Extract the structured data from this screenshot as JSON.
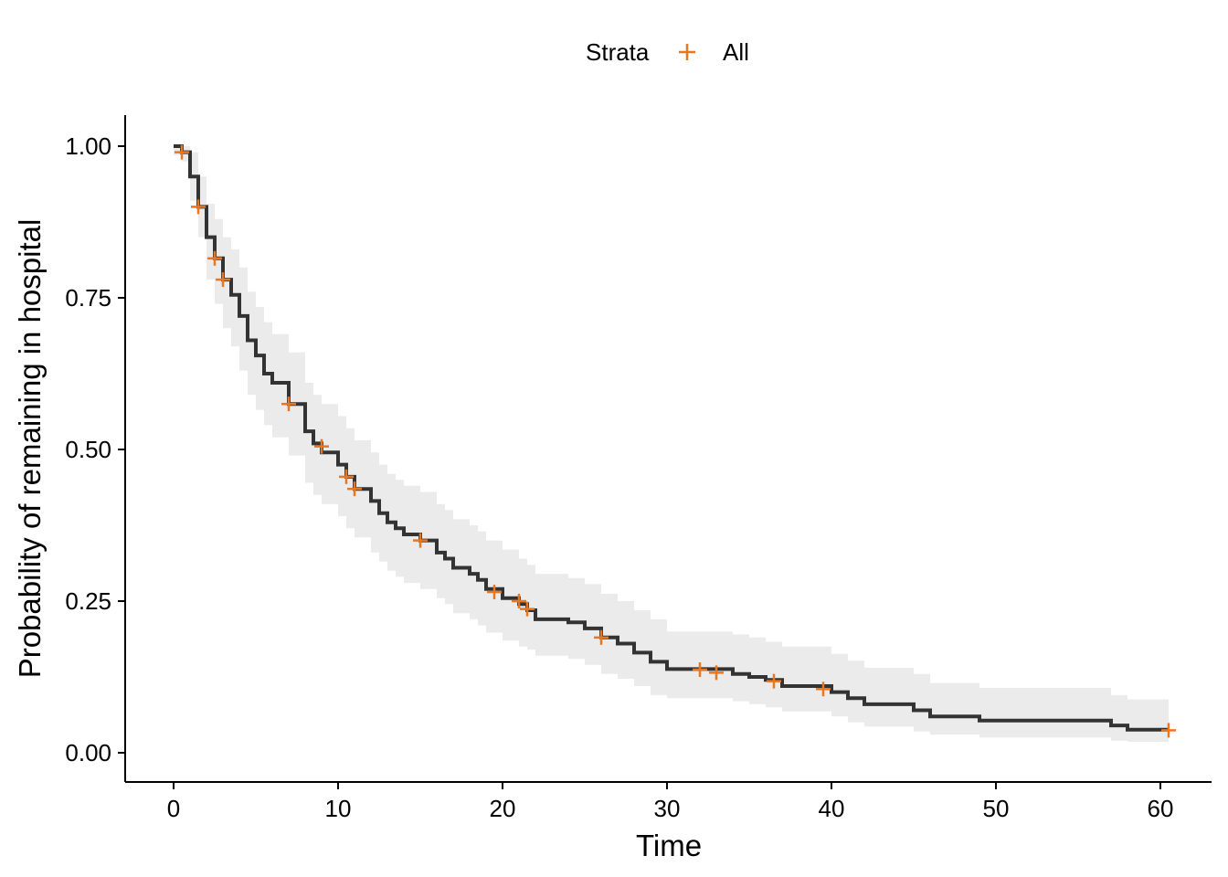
{
  "chart_data": {
    "type": "line",
    "subtype": "kaplan-meier survival curve with confidence band",
    "xlabel": "Time",
    "ylabel": "Probability of remaining in hospital",
    "xlim": [
      -3,
      63
    ],
    "ylim": [
      -0.05,
      1.05
    ],
    "x_ticks": [
      0,
      10,
      20,
      30,
      40,
      50,
      60
    ],
    "y_ticks": [
      0,
      0.25,
      0.5,
      0.75,
      1.0
    ],
    "x_tick_labels": [
      "0",
      "10",
      "20",
      "30",
      "40",
      "50",
      "60"
    ],
    "y_tick_labels": [
      "0.00",
      "0.25",
      "0.50",
      "0.75",
      "1.00"
    ],
    "grid": false,
    "legend": {
      "title": "Strata",
      "placement": "top",
      "entries": [
        {
          "name": "All",
          "color": "#E87722",
          "marker": "plus"
        }
      ]
    },
    "series": [
      {
        "name": "All",
        "line_color": "#333333",
        "band_color": "#EBEBEB",
        "steps": [
          [
            0,
            1.0
          ],
          [
            0.5,
            0.99
          ],
          [
            1,
            0.95
          ],
          [
            1.5,
            0.9
          ],
          [
            2,
            0.85
          ],
          [
            2.5,
            0.815
          ],
          [
            3,
            0.78
          ],
          [
            3.5,
            0.755
          ],
          [
            4,
            0.72
          ],
          [
            4.5,
            0.68
          ],
          [
            5,
            0.655
          ],
          [
            5.5,
            0.625
          ],
          [
            6,
            0.61
          ],
          [
            7,
            0.575
          ],
          [
            8,
            0.53
          ],
          [
            8.5,
            0.51
          ],
          [
            9,
            0.495
          ],
          [
            10,
            0.475
          ],
          [
            10.5,
            0.455
          ],
          [
            11,
            0.435
          ],
          [
            12,
            0.415
          ],
          [
            12.5,
            0.395
          ],
          [
            13,
            0.38
          ],
          [
            13.5,
            0.37
          ],
          [
            14,
            0.36
          ],
          [
            15,
            0.35
          ],
          [
            16,
            0.33
          ],
          [
            16.5,
            0.32
          ],
          [
            17,
            0.305
          ],
          [
            18,
            0.295
          ],
          [
            18.5,
            0.285
          ],
          [
            19,
            0.27
          ],
          [
            20,
            0.255
          ],
          [
            21,
            0.245
          ],
          [
            21.5,
            0.235
          ],
          [
            22,
            0.22
          ],
          [
            24,
            0.215
          ],
          [
            25,
            0.205
          ],
          [
            26,
            0.19
          ],
          [
            27,
            0.18
          ],
          [
            28,
            0.165
          ],
          [
            29,
            0.15
          ],
          [
            30,
            0.138
          ],
          [
            34,
            0.13
          ],
          [
            35,
            0.125
          ],
          [
            36,
            0.12
          ],
          [
            37,
            0.11
          ],
          [
            40,
            0.1
          ],
          [
            41,
            0.09
          ],
          [
            42,
            0.08
          ],
          [
            45,
            0.07
          ],
          [
            46,
            0.06
          ],
          [
            49,
            0.053
          ],
          [
            57,
            0.045
          ],
          [
            58,
            0.038
          ],
          [
            60.5,
            0.038
          ]
        ],
        "lower": [
          [
            0,
            0.985
          ],
          [
            0.5,
            0.975
          ],
          [
            1,
            0.91
          ],
          [
            1.5,
            0.85
          ],
          [
            2,
            0.78
          ],
          [
            2.5,
            0.74
          ],
          [
            3,
            0.7
          ],
          [
            3.5,
            0.67
          ],
          [
            4,
            0.63
          ],
          [
            4.5,
            0.59
          ],
          [
            5,
            0.565
          ],
          [
            5.5,
            0.54
          ],
          [
            6,
            0.52
          ],
          [
            7,
            0.49
          ],
          [
            8,
            0.445
          ],
          [
            8.5,
            0.425
          ],
          [
            9,
            0.41
          ],
          [
            10,
            0.39
          ],
          [
            10.5,
            0.37
          ],
          [
            11,
            0.355
          ],
          [
            12,
            0.33
          ],
          [
            12.5,
            0.315
          ],
          [
            13,
            0.3
          ],
          [
            13.5,
            0.29
          ],
          [
            14,
            0.28
          ],
          [
            15,
            0.27
          ],
          [
            16,
            0.255
          ],
          [
            16.5,
            0.245
          ],
          [
            17,
            0.23
          ],
          [
            18,
            0.22
          ],
          [
            18.5,
            0.21
          ],
          [
            19,
            0.198
          ],
          [
            20,
            0.185
          ],
          [
            21,
            0.175
          ],
          [
            21.5,
            0.17
          ],
          [
            22,
            0.16
          ],
          [
            24,
            0.155
          ],
          [
            25,
            0.145
          ],
          [
            26,
            0.13
          ],
          [
            27,
            0.122
          ],
          [
            28,
            0.11
          ],
          [
            29,
            0.095
          ],
          [
            30,
            0.09
          ],
          [
            34,
            0.085
          ],
          [
            35,
            0.08
          ],
          [
            36,
            0.075
          ],
          [
            37,
            0.068
          ],
          [
            40,
            0.06
          ],
          [
            41,
            0.05
          ],
          [
            42,
            0.043
          ],
          [
            45,
            0.035
          ],
          [
            46,
            0.03
          ],
          [
            49,
            0.025
          ],
          [
            57,
            0.02
          ],
          [
            58,
            0.018
          ],
          [
            60.5,
            0.018
          ]
        ],
        "upper": [
          [
            0,
            1.0
          ],
          [
            0.5,
            1.0
          ],
          [
            1,
            0.99
          ],
          [
            1.5,
            0.95
          ],
          [
            2,
            0.905
          ],
          [
            2.5,
            0.88
          ],
          [
            3,
            0.85
          ],
          [
            3.5,
            0.83
          ],
          [
            4,
            0.8
          ],
          [
            4.5,
            0.76
          ],
          [
            5,
            0.735
          ],
          [
            5.5,
            0.71
          ],
          [
            6,
            0.69
          ],
          [
            7,
            0.66
          ],
          [
            8,
            0.61
          ],
          [
            8.5,
            0.59
          ],
          [
            9,
            0.575
          ],
          [
            10,
            0.555
          ],
          [
            10.5,
            0.535
          ],
          [
            11,
            0.515
          ],
          [
            12,
            0.495
          ],
          [
            12.5,
            0.475
          ],
          [
            13,
            0.46
          ],
          [
            13.5,
            0.45
          ],
          [
            14,
            0.44
          ],
          [
            15,
            0.43
          ],
          [
            16,
            0.41
          ],
          [
            16.5,
            0.4
          ],
          [
            17,
            0.385
          ],
          [
            18,
            0.375
          ],
          [
            18.5,
            0.365
          ],
          [
            19,
            0.35
          ],
          [
            20,
            0.335
          ],
          [
            21,
            0.32
          ],
          [
            21.5,
            0.31
          ],
          [
            22,
            0.295
          ],
          [
            24,
            0.288
          ],
          [
            25,
            0.278
          ],
          [
            26,
            0.262
          ],
          [
            27,
            0.25
          ],
          [
            28,
            0.235
          ],
          [
            29,
            0.22
          ],
          [
            30,
            0.2
          ],
          [
            34,
            0.195
          ],
          [
            35,
            0.19
          ],
          [
            36,
            0.183
          ],
          [
            37,
            0.175
          ],
          [
            40,
            0.163
          ],
          [
            41,
            0.152
          ],
          [
            42,
            0.14
          ],
          [
            45,
            0.13
          ],
          [
            46,
            0.115
          ],
          [
            49,
            0.107
          ],
          [
            57,
            0.095
          ],
          [
            58,
            0.088
          ],
          [
            60.5,
            0.088
          ]
        ],
        "censor_marks": [
          [
            0.5,
            0.99
          ],
          [
            1.5,
            0.9
          ],
          [
            2.5,
            0.815
          ],
          [
            3,
            0.78
          ],
          [
            7,
            0.575
          ],
          [
            9,
            0.505
          ],
          [
            10.5,
            0.455
          ],
          [
            11,
            0.435
          ],
          [
            15,
            0.35
          ],
          [
            19.5,
            0.265
          ],
          [
            21,
            0.25
          ],
          [
            21.5,
            0.237
          ],
          [
            26,
            0.19
          ],
          [
            32,
            0.137
          ],
          [
            33,
            0.132
          ],
          [
            36.5,
            0.118
          ],
          [
            39.5,
            0.105
          ],
          [
            60.5,
            0.037
          ]
        ]
      }
    ]
  }
}
